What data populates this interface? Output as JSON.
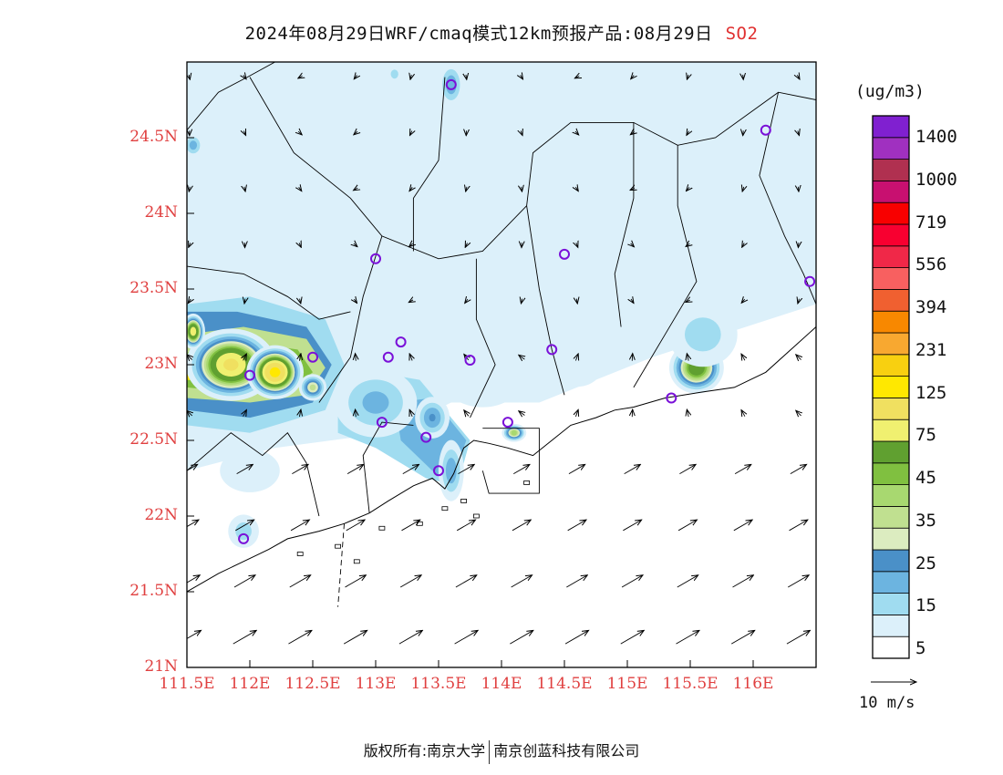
{
  "title": {
    "text": "2024年08月29日WRF/cmaq模式12km预报产品:08月29日",
    "pollutant": "SO2"
  },
  "map": {
    "lon_range": [
      111.5,
      116.5
    ],
    "lat_range": [
      21.0,
      25.0
    ],
    "y_ticks": [
      {
        "lat": 24.5,
        "label": "24.5N"
      },
      {
        "lat": 24.0,
        "label": "24N"
      },
      {
        "lat": 23.5,
        "label": "23.5N"
      },
      {
        "lat": 23.0,
        "label": "23N"
      },
      {
        "lat": 22.5,
        "label": "22.5N"
      },
      {
        "lat": 22.0,
        "label": "22N"
      },
      {
        "lat": 21.5,
        "label": "21.5N"
      },
      {
        "lat": 21.0,
        "label": "21N"
      }
    ],
    "x_ticks": [
      {
        "lon": 111.5,
        "label": "111.5E"
      },
      {
        "lon": 112.0,
        "label": "112E"
      },
      {
        "lon": 112.5,
        "label": "112.5E"
      },
      {
        "lon": 113.0,
        "label": "113E"
      },
      {
        "lon": 113.5,
        "label": "113.5E"
      },
      {
        "lon": 114.0,
        "label": "114E"
      },
      {
        "lon": 114.5,
        "label": "114.5E"
      },
      {
        "lon": 115.0,
        "label": "115E"
      },
      {
        "lon": 115.5,
        "label": "115.5E"
      },
      {
        "lon": 116.0,
        "label": "116E"
      }
    ],
    "stations": [
      [
        113.6,
        24.85
      ],
      [
        116.1,
        24.55
      ],
      [
        113.0,
        23.7
      ],
      [
        114.5,
        23.73
      ],
      [
        116.45,
        23.55
      ],
      [
        112.5,
        23.05
      ],
      [
        112.0,
        22.93
      ],
      [
        113.1,
        23.05
      ],
      [
        113.2,
        23.15
      ],
      [
        113.75,
        23.03
      ],
      [
        114.4,
        23.1
      ],
      [
        113.05,
        22.62
      ],
      [
        113.4,
        22.52
      ],
      [
        113.5,
        22.3
      ],
      [
        114.05,
        22.62
      ],
      [
        115.35,
        22.78
      ],
      [
        111.95,
        21.85
      ]
    ],
    "plumes": [
      {
        "lon": 111.55,
        "lat": 24.45,
        "peak": 17,
        "rx": 0.12,
        "ry": 0.12
      },
      {
        "lon": 113.4,
        "lat": 24.45,
        "peak": 8,
        "rx": 0.3,
        "ry": 0.45
      },
      {
        "lon": 113.6,
        "lat": 24.85,
        "peak": 18,
        "rx": 0.15,
        "ry": 0.22
      },
      {
        "lon": 113.15,
        "lat": 24.92,
        "peak": 10,
        "rx": 0.15,
        "ry": 0.15
      },
      {
        "lon": 116.0,
        "lat": 24.35,
        "peak": 9,
        "rx": 0.22,
        "ry": 0.18
      },
      {
        "lon": 111.85,
        "lat": 23.0,
        "peak": 80,
        "rx": 0.45,
        "ry": 0.3
      },
      {
        "lon": 112.2,
        "lat": 22.95,
        "peak": 110,
        "rx": 0.28,
        "ry": 0.22
      },
      {
        "lon": 111.55,
        "lat": 23.22,
        "peak": 70,
        "rx": 0.12,
        "ry": 0.15
      },
      {
        "lon": 112.5,
        "lat": 22.85,
        "peak": 32,
        "rx": 0.15,
        "ry": 0.12
      },
      {
        "lon": 113.0,
        "lat": 22.75,
        "peak": 16,
        "rx": 0.5,
        "ry": 0.35
      },
      {
        "lon": 113.45,
        "lat": 22.65,
        "peak": 20,
        "rx": 0.2,
        "ry": 0.2
      },
      {
        "lon": 113.6,
        "lat": 22.3,
        "peak": 18,
        "rx": 0.15,
        "ry": 0.3
      },
      {
        "lon": 113.85,
        "lat": 22.9,
        "peak": 8,
        "rx": 0.6,
        "ry": 0.35
      },
      {
        "lon": 114.1,
        "lat": 22.55,
        "peak": 38,
        "rx": 0.13,
        "ry": 0.08
      },
      {
        "lon": 114.6,
        "lat": 23.0,
        "peak": 6,
        "rx": 0.5,
        "ry": 0.35
      },
      {
        "lon": 115.55,
        "lat": 22.98,
        "peak": 55,
        "rx": 0.28,
        "ry": 0.22
      },
      {
        "lon": 115.6,
        "lat": 23.2,
        "peak": 12,
        "rx": 0.45,
        "ry": 0.35
      },
      {
        "lon": 112.0,
        "lat": 22.3,
        "peak": 7,
        "rx": 0.5,
        "ry": 0.3
      },
      {
        "lon": 111.95,
        "lat": 21.9,
        "peak": 12,
        "rx": 0.2,
        "ry": 0.18
      }
    ],
    "regions": [
      {
        "points": [
          [
            111.5,
            25
          ],
          [
            116.5,
            25
          ],
          [
            116.5,
            23.4
          ],
          [
            115.2,
            23.05
          ],
          [
            114.3,
            22.75
          ],
          [
            113.6,
            22.75
          ],
          [
            113.1,
            22.55
          ],
          [
            112.2,
            22.45
          ],
          [
            111.5,
            22.3
          ]
        ],
        "v": 6
      },
      {
        "points": [
          [
            111.5,
            23.4
          ],
          [
            112.0,
            23.45
          ],
          [
            112.6,
            23.3
          ],
          [
            112.75,
            23.0
          ],
          [
            112.6,
            22.7
          ],
          [
            112.0,
            22.55
          ],
          [
            111.5,
            22.6
          ]
        ],
        "v": 12
      },
      {
        "points": [
          [
            111.5,
            23.35
          ],
          [
            111.9,
            23.35
          ],
          [
            112.45,
            23.25
          ],
          [
            112.65,
            23.0
          ],
          [
            112.5,
            22.75
          ],
          [
            112.0,
            22.65
          ],
          [
            111.5,
            22.7
          ]
        ],
        "v": 20
      },
      {
        "points": [
          [
            111.5,
            23.2
          ],
          [
            111.95,
            23.25
          ],
          [
            112.45,
            23.17
          ],
          [
            112.6,
            22.98
          ],
          [
            112.45,
            22.8
          ],
          [
            112.0,
            22.75
          ],
          [
            111.5,
            22.78
          ]
        ],
        "v": 32
      },
      {
        "points": [
          [
            111.5,
            23.08
          ],
          [
            111.95,
            23.15
          ],
          [
            112.38,
            23.1
          ],
          [
            112.5,
            22.95
          ],
          [
            112.35,
            22.85
          ],
          [
            111.85,
            22.82
          ],
          [
            111.5,
            22.85
          ]
        ],
        "v": 40
      },
      {
        "points": [
          [
            111.5,
            23.0
          ],
          [
            111.9,
            23.07
          ],
          [
            112.32,
            23.05
          ],
          [
            112.43,
            22.95
          ],
          [
            112.28,
            22.88
          ],
          [
            111.8,
            22.88
          ],
          [
            111.5,
            22.9
          ]
        ],
        "v": 100
      },
      {
        "points": [
          [
            112.05,
            23.03
          ],
          [
            112.27,
            23.02
          ],
          [
            112.3,
            22.95
          ],
          [
            112.15,
            22.93
          ],
          [
            112.03,
            22.95
          ]
        ],
        "v": 140
      },
      {
        "points": [
          [
            112.7,
            22.8
          ],
          [
            113.0,
            22.95
          ],
          [
            113.35,
            22.9
          ],
          [
            113.75,
            22.5
          ],
          [
            113.65,
            22.2
          ],
          [
            113.4,
            22.25
          ],
          [
            113.0,
            22.45
          ],
          [
            112.7,
            22.55
          ]
        ],
        "v": 10
      },
      {
        "points": [
          [
            113.15,
            22.75
          ],
          [
            113.45,
            22.78
          ],
          [
            113.72,
            22.5
          ],
          [
            113.6,
            22.22
          ],
          [
            113.45,
            22.3
          ],
          [
            113.2,
            22.5
          ]
        ],
        "v": 15
      },
      {
        "points": [
          [
            113.3,
            22.7
          ],
          [
            113.5,
            22.72
          ],
          [
            113.65,
            22.5
          ],
          [
            113.55,
            22.3
          ],
          [
            113.45,
            22.4
          ]
        ],
        "v": 18
      }
    ],
    "coastline": [
      [
        111.5,
        21.5
      ],
      [
        111.75,
        21.62
      ],
      [
        111.95,
        21.7
      ],
      [
        112.15,
        21.78
      ],
      [
        112.3,
        21.85
      ],
      [
        112.55,
        21.9
      ],
      [
        112.75,
        21.95
      ],
      [
        112.95,
        22.02
      ],
      [
        113.1,
        22.1
      ],
      [
        113.3,
        22.2
      ],
      [
        113.45,
        22.25
      ],
      [
        113.55,
        22.18
      ],
      [
        113.62,
        22.28
      ],
      [
        113.7,
        22.45
      ],
      [
        113.78,
        22.5
      ],
      [
        113.9,
        22.48
      ],
      [
        114.05,
        22.45
      ],
      [
        114.25,
        22.4
      ],
      [
        114.4,
        22.5
      ],
      [
        114.55,
        22.6
      ],
      [
        114.75,
        22.65
      ],
      [
        114.9,
        22.7
      ],
      [
        115.05,
        22.72
      ],
      [
        115.3,
        22.78
      ],
      [
        115.6,
        22.82
      ],
      [
        115.85,
        22.85
      ],
      [
        116.1,
        22.95
      ],
      [
        116.3,
        23.1
      ],
      [
        116.5,
        23.25
      ]
    ],
    "hk_box": [
      [
        113.85,
        22.58
      ],
      [
        114.3,
        22.58
      ],
      [
        114.3,
        22.15
      ],
      [
        113.9,
        22.15
      ],
      [
        113.85,
        22.3
      ]
    ],
    "borders": [
      [
        [
          111.5,
          24.55
        ],
        [
          111.75,
          24.8
        ],
        [
          111.98,
          24.9
        ],
        [
          112.2,
          25.0
        ]
      ],
      [
        [
          112.0,
          24.9
        ],
        [
          112.35,
          24.4
        ],
        [
          112.8,
          24.1
        ],
        [
          113.05,
          23.85
        ],
        [
          113.5,
          23.7
        ],
        [
          113.85,
          23.75
        ],
        [
          114.2,
          24.05
        ],
        [
          114.25,
          24.4
        ],
        [
          114.55,
          24.6
        ],
        [
          115.05,
          24.6
        ],
        [
          115.4,
          24.45
        ],
        [
          115.7,
          24.5
        ],
        [
          116.2,
          24.8
        ],
        [
          116.5,
          24.75
        ]
      ],
      [
        [
          113.05,
          23.85
        ],
        [
          112.9,
          23.45
        ],
        [
          112.8,
          23.05
        ],
        [
          112.55,
          22.75
        ]
      ],
      [
        [
          113.55,
          24.9
        ],
        [
          113.5,
          24.35
        ],
        [
          113.3,
          24.1
        ],
        [
          113.3,
          23.75
        ]
      ],
      [
        [
          113.8,
          23.7
        ],
        [
          113.8,
          23.3
        ],
        [
          113.95,
          23.0
        ],
        [
          113.75,
          22.65
        ]
      ],
      [
        [
          114.2,
          24.05
        ],
        [
          114.3,
          23.5
        ],
        [
          114.4,
          23.1
        ],
        [
          114.5,
          22.8
        ]
      ],
      [
        [
          115.05,
          24.6
        ],
        [
          115.05,
          24.1
        ],
        [
          114.9,
          23.6
        ],
        [
          114.95,
          23.25
        ]
      ],
      [
        [
          115.4,
          24.45
        ],
        [
          115.4,
          24.05
        ],
        [
          115.55,
          23.55
        ],
        [
          115.3,
          23.2
        ],
        [
          115.05,
          22.85
        ]
      ],
      [
        [
          116.2,
          24.8
        ],
        [
          116.05,
          24.25
        ],
        [
          116.25,
          23.85
        ],
        [
          116.4,
          23.6
        ],
        [
          116.5,
          23.4
        ]
      ],
      [
        [
          111.5,
          23.65
        ],
        [
          111.95,
          23.6
        ],
        [
          112.3,
          23.45
        ],
        [
          112.55,
          23.3
        ],
        [
          112.8,
          23.35
        ]
      ],
      [
        [
          111.5,
          22.3
        ],
        [
          111.85,
          22.55
        ],
        [
          112.1,
          22.4
        ],
        [
          112.3,
          22.55
        ],
        [
          112.45,
          22.35
        ],
        [
          112.55,
          22.0
        ]
      ],
      [
        [
          112.95,
          22.02
        ],
        [
          112.9,
          22.4
        ],
        [
          113.05,
          22.62
        ],
        [
          113.3,
          22.6
        ]
      ]
    ],
    "islands": [
      [
        113.55,
        22.05
      ],
      [
        113.7,
        22.1
      ],
      [
        113.8,
        22.0
      ],
      [
        114.2,
        22.22
      ],
      [
        113.35,
        21.95
      ],
      [
        113.05,
        21.92
      ],
      [
        112.7,
        21.8
      ],
      [
        112.4,
        21.75
      ],
      [
        112.85,
        21.7
      ]
    ]
  },
  "wind": {
    "reference_label": "10 m/s"
  },
  "colorbar": {
    "unit": "(ug/m3)",
    "colors": [
      "#ffffff",
      "#dcf0fa",
      "#a0dcf0",
      "#6cb4e0",
      "#4a90c8",
      "#dcecc0",
      "#c0e090",
      "#a8d870",
      "#80c040",
      "#60a030",
      "#f0f070",
      "#f0e060",
      "#ffe800",
      "#f8d010",
      "#f8a830",
      "#f88800",
      "#f06030",
      "#f86060",
      "#f02848",
      "#f80030",
      "#f80000",
      "#c81070",
      "#b03050",
      "#a030c0",
      "#8020d0"
    ],
    "thresholds": [
      0,
      5,
      10,
      15,
      20,
      25,
      30,
      35,
      40,
      45,
      60,
      75,
      100,
      125,
      180,
      231,
      300,
      394,
      480,
      556,
      640,
      719,
      860,
      1000,
      1200
    ],
    "labels": [
      "1400",
      "1000",
      "719",
      "556",
      "394",
      "231",
      "125",
      "75",
      "45",
      "35",
      "25",
      "15",
      "5"
    ]
  },
  "footer": {
    "left": "版权所有:南京大学",
    "right": "南京创蓝科技有限公司"
  }
}
